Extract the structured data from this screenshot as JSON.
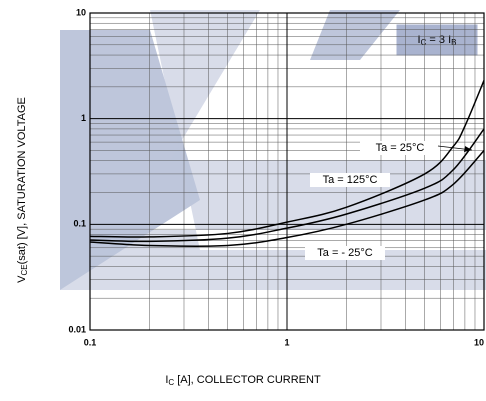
{
  "chart_data": {
    "type": "line",
    "xlabel": [
      "I",
      "C",
      " [A], COLLECTOR CURRENT"
    ],
    "ylabel": [
      "V",
      "CE",
      "(sat) [V], SATURATION VOLTAGE"
    ],
    "annotation": [
      "I",
      "C",
      " = 3 I",
      "B"
    ],
    "log_x": true,
    "log_y": true,
    "grid": true,
    "xlim": [
      0.1,
      10
    ],
    "ylim": [
      0.01,
      10
    ],
    "xticks": [
      0.1,
      1,
      10
    ],
    "yticks": [
      0.01,
      0.1,
      1,
      10
    ],
    "x_minor_ticks": [
      0.2,
      0.3,
      0.4,
      0.5,
      0.6,
      0.7,
      0.8,
      0.9,
      2,
      3,
      4,
      5,
      6,
      7,
      8,
      9
    ],
    "y_minor_ticks": [
      0.02,
      0.03,
      0.04,
      0.05,
      0.06,
      0.07,
      0.08,
      0.09,
      0.2,
      0.3,
      0.4,
      0.5,
      0.6,
      0.7,
      0.8,
      0.9,
      2,
      3,
      4,
      5,
      6,
      7,
      8,
      9
    ],
    "series": [
      {
        "name": "Ta = 125°C",
        "color": "#000000",
        "x": [
          0.1,
          0.2,
          0.5,
          1,
          2,
          5,
          7,
          8,
          10
        ],
        "values": [
          0.077,
          0.076,
          0.082,
          0.105,
          0.145,
          0.3,
          0.55,
          0.85,
          2.3
        ]
      },
      {
        "name": "Ta = 25°C",
        "color": "#000000",
        "x": [
          0.1,
          0.2,
          0.5,
          1,
          2,
          5,
          7,
          10
        ],
        "values": [
          0.071,
          0.069,
          0.074,
          0.092,
          0.125,
          0.22,
          0.33,
          0.8
        ]
      },
      {
        "name": "Ta = - 25°C",
        "color": "#000000",
        "x": [
          0.1,
          0.2,
          0.5,
          1,
          2,
          5,
          7,
          10
        ],
        "values": [
          0.068,
          0.063,
          0.063,
          0.075,
          0.1,
          0.17,
          0.24,
          0.5
        ]
      }
    ]
  }
}
